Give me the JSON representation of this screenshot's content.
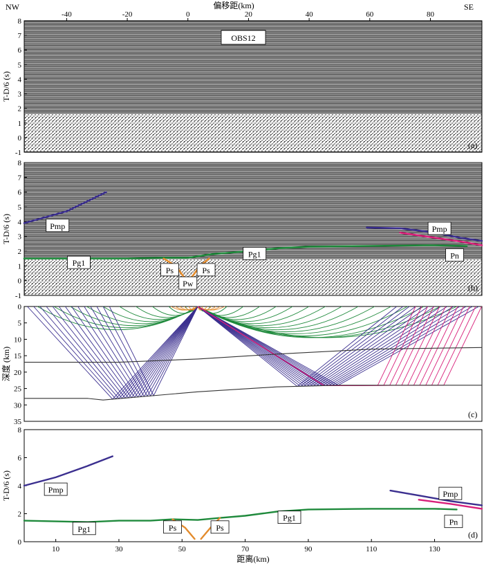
{
  "corner_labels": {
    "left": "NW",
    "right": "SE"
  },
  "top_axis_label": "偏移距(km)",
  "top_axis_ticks": [
    -40,
    -20,
    0,
    20,
    40,
    60,
    80
  ],
  "station_label": "OBS12",
  "colors": {
    "Pg1": "#1f8a3c",
    "Pmp": "#3b2f8f",
    "Pn": "#d8207a",
    "Ps": "#e38b2c",
    "Pw": "#e38b2c",
    "boundary": "#333333"
  },
  "chart_data": [
    {
      "panel": "(a)",
      "type": "image",
      "description_label": "OBS12",
      "ylabel": "T-D/6 (s)",
      "ylim": [
        -1,
        8
      ],
      "y_ticks": [
        -1,
        0,
        1,
        2,
        3,
        4,
        5,
        6,
        7,
        8
      ],
      "xlim": [
        -54,
        97
      ],
      "x_ticks": [
        -40,
        -20,
        0,
        20,
        40,
        60,
        80
      ],
      "xlabel": "偏移距(km)"
    },
    {
      "panel": "(b)",
      "type": "line",
      "ylabel": "T-D/6 (s)",
      "ylim": [
        -1,
        8
      ],
      "y_ticks": [
        -1,
        0,
        1,
        2,
        3,
        4,
        5,
        6,
        7,
        8
      ],
      "xlim": [
        -54,
        97
      ],
      "series": [
        {
          "name": "Pmp",
          "x": [
            -54,
            -40,
            -27
          ],
          "y": [
            3.9,
            4.7,
            6.0
          ]
        },
        {
          "name": "Pmp",
          "x": [
            59,
            70,
            80,
            90,
            97
          ],
          "y": [
            3.6,
            3.55,
            3.3,
            2.9,
            2.7
          ]
        },
        {
          "name": "Pn",
          "x": [
            70,
            80,
            90,
            97
          ],
          "y": [
            3.25,
            2.95,
            2.65,
            2.4
          ]
        },
        {
          "name": "Pg1",
          "x": [
            -54,
            -40,
            -20,
            -8,
            0,
            8,
            20,
            30,
            40,
            60,
            80,
            92
          ],
          "y": [
            1.5,
            1.5,
            1.5,
            1.55,
            1.55,
            1.8,
            2.0,
            2.2,
            2.3,
            2.35,
            2.4,
            2.35
          ]
        },
        {
          "name": "Ps",
          "x": [
            -8,
            -4,
            -1.5
          ],
          "y": [
            1.5,
            1.0,
            0.3
          ]
        },
        {
          "name": "Ps",
          "x": [
            1.5,
            4,
            7
          ],
          "y": [
            0.3,
            1.0,
            1.5
          ]
        },
        {
          "name": "Pw",
          "x": [
            -1.5,
            0,
            1.5
          ],
          "y": [
            0.3,
            0.0,
            0.3
          ]
        }
      ],
      "labels": [
        "Pmp",
        "Pg1",
        "Ps",
        "Pw",
        "Ps",
        "Pg1",
        "Pmp",
        "Pn"
      ]
    },
    {
      "panel": "(c)",
      "type": "line",
      "ylabel": "深度 (km)",
      "ylim": [
        35,
        0
      ],
      "y_ticks": [
        0,
        5,
        10,
        15,
        20,
        25,
        30,
        35
      ],
      "xlim": [
        0,
        145
      ],
      "source_x": 55,
      "layer_boundaries": [
        {
          "x": [
            0,
            30,
            55,
            80,
            110,
            145
          ],
          "y": [
            17,
            17,
            16,
            14.5,
            13,
            12.5
          ]
        },
        {
          "x": [
            0,
            20,
            25,
            55,
            80,
            100,
            145
          ],
          "y": [
            28,
            28,
            28.5,
            26,
            24.5,
            24,
            24
          ]
        }
      ],
      "ray_families": [
        "Pg1",
        "Pmp",
        "Pn",
        "Ps"
      ]
    },
    {
      "panel": "(d)",
      "type": "scatter",
      "ylabel": "T-D/6 (s)",
      "xlabel": "距离(km)",
      "ylim": [
        0,
        8
      ],
      "y_ticks": [
        0,
        2,
        4,
        6,
        8
      ],
      "xlim": [
        0,
        145
      ],
      "x_ticks": [
        10,
        30,
        50,
        70,
        90,
        110,
        130
      ],
      "series": [
        {
          "name": "Pmp",
          "x": [
            0,
            10,
            20,
            28
          ],
          "y": [
            4.0,
            4.6,
            5.4,
            6.1
          ]
        },
        {
          "name": "Pmp",
          "x": [
            116,
            125,
            135,
            145
          ],
          "y": [
            3.65,
            3.3,
            2.9,
            2.6
          ]
        },
        {
          "name": "Pn",
          "x": [
            125,
            135,
            145
          ],
          "y": [
            3.0,
            2.7,
            2.35
          ]
        },
        {
          "name": "Pg1",
          "x": [
            0,
            10,
            20,
            30,
            40,
            47,
            55,
            62,
            70,
            80,
            90,
            110,
            130,
            137
          ],
          "y": [
            1.5,
            1.45,
            1.4,
            1.5,
            1.5,
            1.6,
            1.55,
            1.7,
            1.85,
            2.15,
            2.3,
            2.35,
            2.35,
            2.3
          ]
        },
        {
          "name": "Ps",
          "x": [
            47,
            51,
            54
          ],
          "y": [
            1.6,
            1.0,
            0.2
          ]
        },
        {
          "name": "Ps",
          "x": [
            56,
            59,
            62
          ],
          "y": [
            0.2,
            1.0,
            1.7
          ]
        }
      ],
      "labels": [
        "Pmp",
        "Pg1",
        "Ps",
        "Ps",
        "Pg1",
        "Pmp",
        "Pn"
      ]
    }
  ],
  "panel_tags": [
    "(a)",
    "(b)",
    "(c)",
    "(d)"
  ],
  "phase_labels": {
    "b": [
      "Pmp",
      "Pg1",
      "Ps",
      "Pw",
      "Ps",
      "Pg1",
      "Pmp",
      "Pn"
    ],
    "d": [
      "Pmp",
      "Pg1",
      "Ps",
      "Ps",
      "Pg1",
      "Pmp",
      "Pn"
    ]
  },
  "y_axis_labels": {
    "a": "T-D/6 (s)",
    "b": "T-D/6 (s)",
    "c": "深度 (km)",
    "d": "T-D/6 (s)"
  },
  "bottom_axis_label": "距离(km)"
}
